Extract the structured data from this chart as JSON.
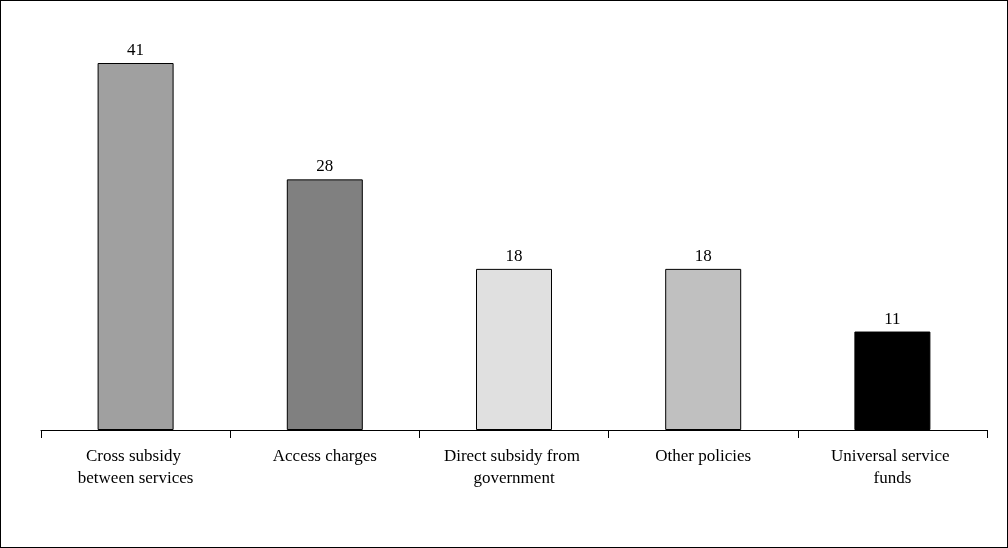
{
  "chart_data": {
    "type": "bar",
    "categories": [
      "Cross subsidy between services",
      "Access charges",
      "Direct subsidy from government",
      "Other policies",
      "Universal service funds"
    ],
    "values": [
      41,
      28,
      18,
      18,
      11
    ],
    "colors": [
      "#a0a0a0",
      "#808080",
      "#e0e0e0",
      "#c0c0c0",
      "#000000"
    ],
    "data_labels": true
  }
}
